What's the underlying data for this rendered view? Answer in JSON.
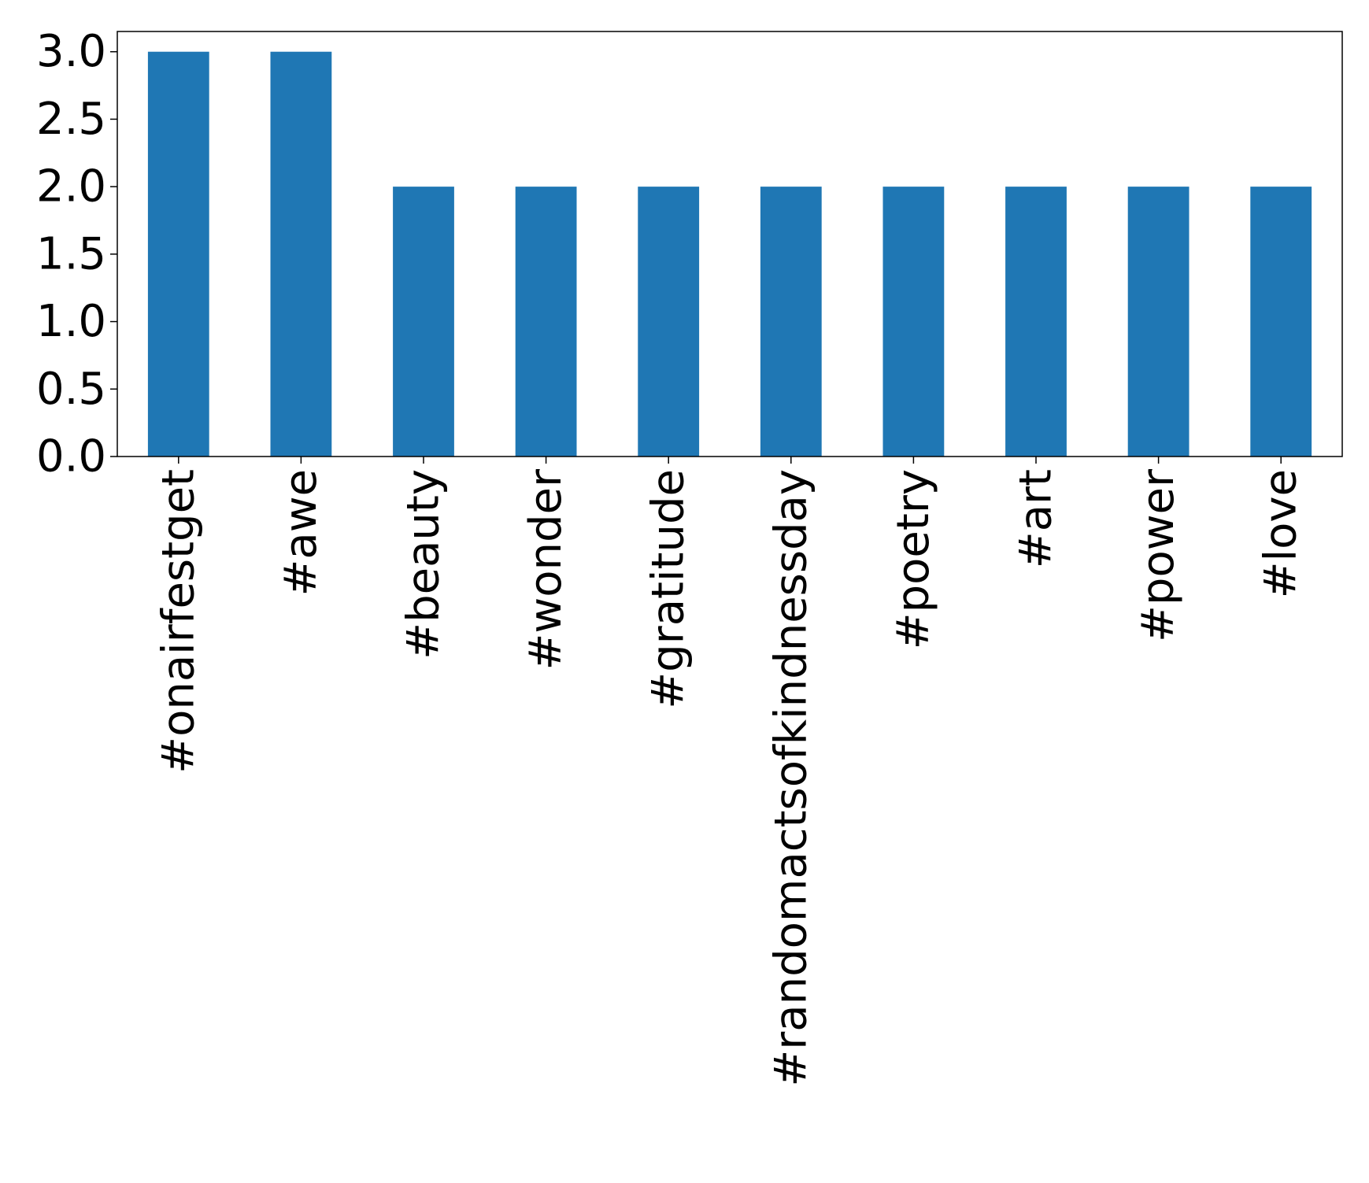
{
  "chart_data": {
    "type": "bar",
    "categories": [
      "#onairfestget",
      "#awe",
      "#beauty",
      "#wonder",
      "#gratitude",
      "#randomactsofkindnessday",
      "#poetry",
      "#art",
      "#power",
      "#love"
    ],
    "values": [
      3,
      3,
      2,
      2,
      2,
      2,
      2,
      2,
      2,
      2
    ],
    "y_ticks": [
      "0.0",
      "0.5",
      "1.0",
      "1.5",
      "2.0",
      "2.5",
      "3.0"
    ],
    "ylim": [
      0,
      3.15
    ],
    "title": "",
    "xlabel": "",
    "ylabel": "",
    "bar_color": "#1f77b4",
    "grid": false,
    "legend": "none"
  }
}
